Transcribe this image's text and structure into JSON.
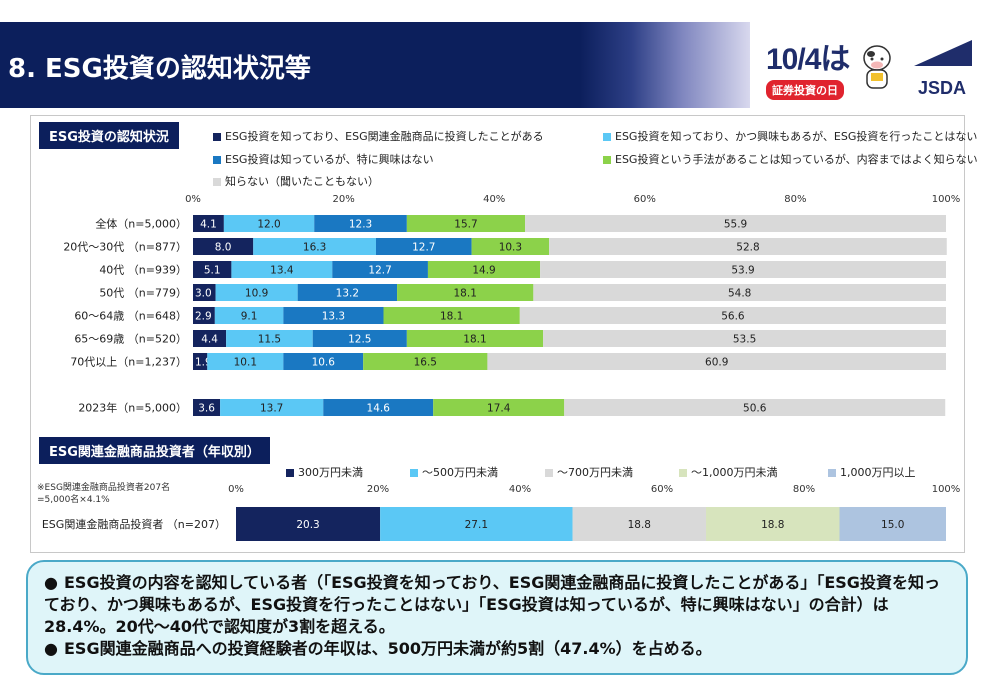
{
  "header": {
    "title": "8. ESG投資の認知状況等",
    "event_logo_date": "10/4は",
    "event_logo_label": "証券投資の日",
    "org_logo": "JSDA"
  },
  "section1": {
    "label": "ESG投資の認知状況"
  },
  "section2": {
    "label": "ESG関連金融商品投資者（年収別）",
    "note_line1": "※ESG関連金融商品投資者207名",
    "note_line2": "=5,000名×4.1%"
  },
  "summary": {
    "bullet1": "ESG投資の内容を認知している者（「ESG投資を知っており、ESG関連金融商品に投資したことがある」「ESG投資を知っており、かつ興味もあるが、ESG投資を行ったことはない」「ESG投資は知っているが、特に興味はない」の合計）は28.4%。20代～40代で認知度が3割を超える。",
    "bullet2": "ESG関連金融商品への投資経験者の年収は、500万円未満が約5割（47.4%）を占める。"
  },
  "colors": {
    "navy": "#14245e",
    "lightblue": "#5bc8f5",
    "blue": "#1a78c2",
    "green": "#8cd24a",
    "gray": "#d9d9d9",
    "lightgreen": "#d7e4bd",
    "paleblue": "#adc4e0"
  },
  "chart_data": [
    {
      "type": "bar",
      "orientation": "horizontal",
      "stacked": true,
      "xlim": [
        0,
        100
      ],
      "x_ticks": [
        "0%",
        "20%",
        "40%",
        "60%",
        "80%",
        "100%"
      ],
      "categories": [
        "全体（n=5,000）",
        "20代～30代 （n=877）",
        "40代 （n=939）",
        "50代 （n=779）",
        "60～64歳 （n=648）",
        "65～69歳 （n=520）",
        "70代以上（n=1,237）",
        "2023年（n=5,000）"
      ],
      "series": [
        {
          "name": "ESG投資を知っており、ESG関連金融商品に投資したことがある",
          "color": "#14245e",
          "values": [
            4.1,
            8.0,
            5.1,
            3.0,
            2.9,
            4.4,
            1.9,
            3.6
          ]
        },
        {
          "name": "ESG投資を知っており、かつ興味もあるが、ESG投資を行ったことはない",
          "color": "#5bc8f5",
          "values": [
            12.0,
            16.3,
            13.4,
            10.9,
            9.1,
            11.5,
            10.1,
            13.7
          ]
        },
        {
          "name": "ESG投資は知っているが、特に興味はない",
          "color": "#1a78c2",
          "values": [
            12.3,
            12.7,
            12.7,
            13.2,
            13.3,
            12.5,
            10.6,
            14.6
          ]
        },
        {
          "name": "ESG投資という手法があることは知っているが、内容まではよく知らない",
          "color": "#8cd24a",
          "values": [
            15.7,
            10.3,
            14.9,
            18.1,
            18.1,
            18.1,
            16.5,
            17.4
          ]
        },
        {
          "name": "知らない（聞いたこともない）",
          "color": "#d9d9d9",
          "values": [
            55.9,
            52.8,
            53.9,
            54.8,
            56.6,
            53.5,
            60.9,
            50.6
          ]
        }
      ],
      "labels": [
        [
          "4.1",
          "12.0",
          "12.3",
          "15.7",
          "55.9"
        ],
        [
          "8.0",
          "16.3",
          "12.7",
          "10.3",
          "52.8"
        ],
        [
          "5.1",
          "13.4",
          "12.7",
          "14.9",
          "53.9"
        ],
        [
          "3.0",
          "10.9",
          "13.2",
          "18.1",
          "54.8"
        ],
        [
          "2.9",
          "9.1",
          "13.3",
          "18.1",
          "56.6"
        ],
        [
          "4.4",
          "11.5",
          "12.5",
          "18.1",
          "53.5"
        ],
        [
          "1.9",
          "10.1",
          "10.6",
          "16.5",
          "60.9"
        ],
        [
          "3.6",
          "13.7",
          "14.6",
          "17.4",
          "50.6"
        ]
      ]
    },
    {
      "type": "bar",
      "orientation": "horizontal",
      "stacked": true,
      "xlim": [
        0,
        100
      ],
      "x_ticks": [
        "0%",
        "20%",
        "40%",
        "60%",
        "80%",
        "100%"
      ],
      "categories": [
        "ESG関連金融商品投資者 （n=207）"
      ],
      "series": [
        {
          "name": "300万円未満",
          "color": "#14245e",
          "values": [
            20.3
          ]
        },
        {
          "name": "～500万円未満",
          "color": "#5bc8f5",
          "values": [
            27.1
          ]
        },
        {
          "name": "～700万円未満",
          "color": "#d9d9d9",
          "values": [
            18.8
          ]
        },
        {
          "name": "～1,000万円未満",
          "color": "#d7e4bd",
          "values": [
            18.8
          ]
        },
        {
          "name": "1,000万円以上",
          "color": "#adc4e0",
          "values": [
            15.0
          ]
        }
      ],
      "labels": [
        [
          "20.3",
          "27.1",
          "18.8",
          "18.8",
          "15.0"
        ]
      ]
    }
  ]
}
